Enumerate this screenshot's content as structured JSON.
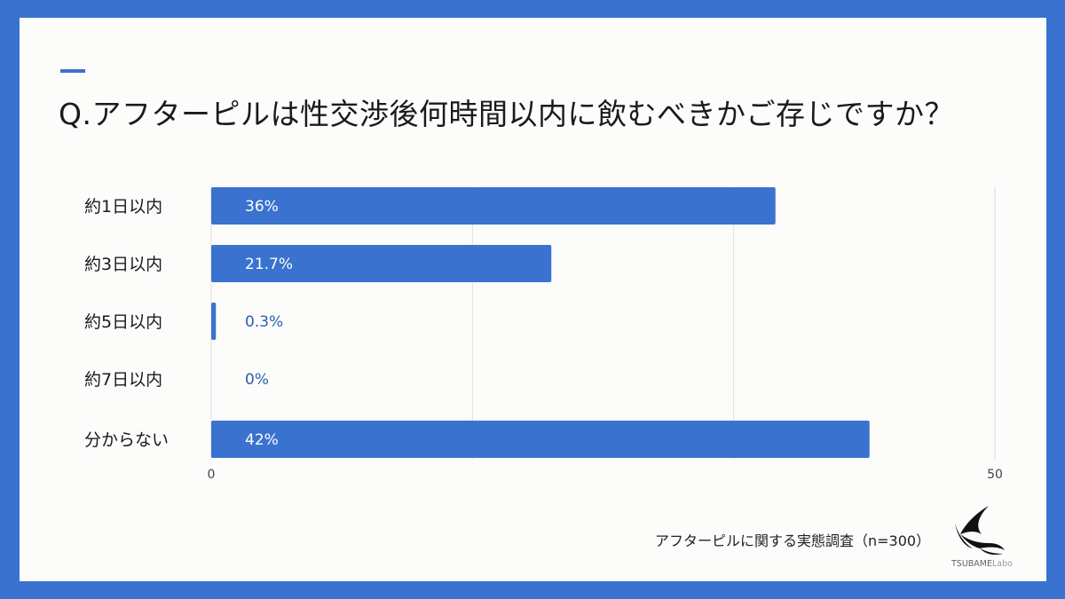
{
  "title": "Q.アフターピルは性交渉後何時間以内に飲むべきかご存じですか？",
  "source": "アフターピルに関する実態調査（n=300）",
  "logo": {
    "bold": "TSUBAME",
    "light": "Labo"
  },
  "colors": {
    "frame": "#3a72cf",
    "bar": "#3a72cf",
    "grid": "#dddddd",
    "label_inside": "#ffffff",
    "label_outside": "#2a5fa8"
  },
  "icons": {
    "logo": "swallow-bird-icon"
  },
  "chart_data": {
    "type": "bar",
    "orientation": "horizontal",
    "categories": [
      "約1日以内",
      "約3日以内",
      "約5日以内",
      "約7日以内",
      "分からない"
    ],
    "values": [
      36,
      21.7,
      0.3,
      0,
      42
    ],
    "value_labels": [
      "36%",
      "21.7%",
      "0.3%",
      "0%",
      "42%"
    ],
    "xlim": [
      0,
      50
    ],
    "x_ticks": [
      "0",
      "50"
    ],
    "grid": true
  }
}
